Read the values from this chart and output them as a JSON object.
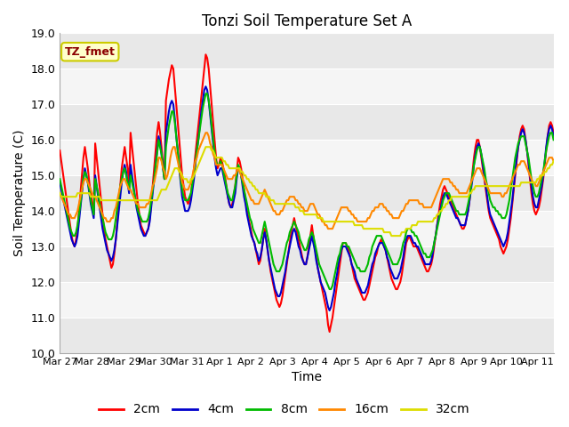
{
  "title": "Tonzi Soil Temperature Set A",
  "xlabel": "Time",
  "ylabel": "Soil Temperature (C)",
  "ylim": [
    10.0,
    19.0
  ],
  "yticks": [
    10.0,
    11.0,
    12.0,
    13.0,
    14.0,
    15.0,
    16.0,
    17.0,
    18.0,
    19.0
  ],
  "xtick_labels": [
    "Mar 27",
    "Mar 28",
    "Mar 29",
    "Mar 30",
    "Mar 31",
    "Apr 1",
    "Apr 2",
    "Apr 3",
    "Apr 4",
    "Apr 5",
    "Apr 6",
    "Apr 7",
    "Apr 8",
    "Apr 9",
    "Apr 10",
    "Apr 11"
  ],
  "background_color": "#ffffff",
  "plot_bg_light": "#f0f0f0",
  "plot_bg_dark": "#e0e0e0",
  "grid_color": "#ffffff",
  "legend_label": "TZ_fmet",
  "legend_box_color": "#ffffcc",
  "legend_text_color": "#8b0000",
  "legend_box_edge": "#cccc00",
  "series": {
    "2cm": {
      "color": "#ff0000",
      "lw": 1.5
    },
    "4cm": {
      "color": "#0000cc",
      "lw": 1.5
    },
    "8cm": {
      "color": "#00bb00",
      "lw": 1.5
    },
    "16cm": {
      "color": "#ff8800",
      "lw": 1.5
    },
    "32cm": {
      "color": "#dddd00",
      "lw": 1.5
    }
  },
  "data_2cm": [
    15.7,
    15.4,
    15.1,
    14.8,
    14.5,
    14.2,
    13.9,
    13.6,
    13.3,
    13.1,
    13.0,
    13.2,
    13.5,
    14.0,
    14.5,
    15.0,
    15.5,
    15.8,
    15.5,
    15.2,
    14.8,
    14.5,
    14.2,
    13.9,
    15.9,
    15.5,
    15.1,
    14.7,
    14.3,
    13.9,
    13.5,
    13.2,
    13.0,
    12.8,
    12.6,
    12.4,
    12.5,
    12.8,
    13.2,
    13.7,
    14.2,
    14.7,
    15.2,
    15.5,
    15.8,
    15.5,
    15.2,
    14.8,
    16.2,
    15.8,
    15.4,
    15.0,
    14.6,
    14.2,
    13.9,
    13.6,
    13.5,
    13.4,
    13.3,
    13.4,
    13.5,
    13.8,
    14.2,
    14.7,
    15.2,
    15.7,
    16.2,
    16.5,
    16.2,
    15.8,
    15.3,
    14.9,
    17.1,
    17.4,
    17.7,
    17.9,
    18.1,
    18.0,
    17.5,
    17.0,
    16.5,
    16.0,
    15.5,
    15.0,
    14.7,
    14.4,
    14.3,
    14.2,
    14.3,
    14.5,
    14.8,
    15.2,
    15.6,
    16.0,
    16.4,
    16.8,
    17.2,
    17.6,
    18.0,
    18.4,
    18.3,
    18.0,
    17.5,
    17.0,
    16.5,
    16.0,
    15.5,
    15.2,
    15.3,
    15.5,
    15.4,
    15.2,
    15.0,
    14.7,
    14.4,
    14.2,
    14.1,
    14.2,
    14.4,
    14.7,
    15.1,
    15.5,
    15.4,
    15.2,
    14.9,
    14.6,
    14.3,
    14.0,
    13.8,
    13.6,
    13.4,
    13.2,
    13.1,
    12.9,
    12.7,
    12.5,
    12.6,
    12.9,
    13.2,
    13.5,
    13.2,
    12.9,
    12.6,
    12.3,
    12.1,
    11.9,
    11.7,
    11.5,
    11.4,
    11.3,
    11.4,
    11.6,
    11.9,
    12.2,
    12.5,
    12.8,
    13.1,
    13.4,
    13.6,
    13.8,
    13.6,
    13.4,
    13.2,
    13.0,
    12.8,
    12.6,
    12.5,
    12.5,
    12.7,
    13.0,
    13.3,
    13.6,
    13.3,
    13.0,
    12.7,
    12.4,
    12.2,
    12.0,
    11.8,
    11.6,
    11.4,
    11.2,
    10.8,
    10.6,
    10.8,
    11.0,
    11.3,
    11.6,
    11.9,
    12.2,
    12.5,
    12.8,
    13.1,
    13.1,
    13.1,
    13.0,
    12.9,
    12.7,
    12.5,
    12.3,
    12.1,
    12.0,
    11.9,
    11.8,
    11.7,
    11.6,
    11.5,
    11.5,
    11.6,
    11.7,
    11.9,
    12.1,
    12.3,
    12.5,
    12.7,
    12.8,
    13.0,
    13.1,
    13.2,
    13.1,
    13.0,
    12.9,
    12.7,
    12.5,
    12.3,
    12.1,
    12.0,
    11.9,
    11.8,
    11.8,
    11.9,
    12.0,
    12.2,
    12.5,
    12.8,
    13.1,
    13.2,
    13.3,
    13.2,
    13.1,
    13.0,
    13.0,
    13.0,
    12.9,
    12.8,
    12.7,
    12.6,
    12.5,
    12.4,
    12.3,
    12.3,
    12.4,
    12.5,
    12.7,
    13.0,
    13.3,
    13.6,
    13.9,
    14.2,
    14.4,
    14.6,
    14.7,
    14.6,
    14.5,
    14.4,
    14.3,
    14.2,
    14.1,
    14.0,
    13.9,
    13.8,
    13.7,
    13.6,
    13.5,
    13.5,
    13.6,
    13.8,
    14.0,
    14.3,
    14.7,
    15.1,
    15.5,
    15.8,
    16.0,
    16.0,
    15.8,
    15.5,
    15.2,
    14.9,
    14.6,
    14.3,
    14.0,
    13.8,
    13.7,
    13.6,
    13.5,
    13.4,
    13.3,
    13.2,
    13.0,
    12.9,
    12.8,
    12.9,
    13.0,
    13.2,
    13.5,
    13.8,
    14.2,
    14.6,
    15.0,
    15.4,
    15.8,
    16.1,
    16.3,
    16.4,
    16.3,
    16.0,
    15.7,
    15.3,
    14.9,
    14.5,
    14.2,
    14.0,
    13.9,
    14.0,
    14.1,
    14.3,
    14.6,
    14.9,
    15.3,
    15.7,
    16.1,
    16.4,
    16.5,
    16.4,
    16.2
  ],
  "data_4cm": [
    14.8,
    14.6,
    14.4,
    14.2,
    14.0,
    13.8,
    13.6,
    13.4,
    13.2,
    13.1,
    13.0,
    13.1,
    13.3,
    13.7,
    14.1,
    14.5,
    14.9,
    15.2,
    15.0,
    14.8,
    14.5,
    14.2,
    14.0,
    13.8,
    15.0,
    14.7,
    14.4,
    14.1,
    13.8,
    13.5,
    13.3,
    13.1,
    12.9,
    12.8,
    12.7,
    12.6,
    12.7,
    12.9,
    13.2,
    13.6,
    14.0,
    14.4,
    14.8,
    15.1,
    15.3,
    15.1,
    14.8,
    14.5,
    15.3,
    15.0,
    14.7,
    14.4,
    14.1,
    13.9,
    13.7,
    13.5,
    13.4,
    13.3,
    13.3,
    13.4,
    13.5,
    13.7,
    14.1,
    14.5,
    14.9,
    15.3,
    15.7,
    16.1,
    15.9,
    15.6,
    15.2,
    14.9,
    16.2,
    16.5,
    16.8,
    17.0,
    17.1,
    17.0,
    16.6,
    16.1,
    15.7,
    15.2,
    14.8,
    14.4,
    14.2,
    14.0,
    14.0,
    14.0,
    14.1,
    14.3,
    14.6,
    14.9,
    15.3,
    15.7,
    16.0,
    16.4,
    16.8,
    17.1,
    17.4,
    17.5,
    17.4,
    17.1,
    16.7,
    16.3,
    15.9,
    15.5,
    15.2,
    15.0,
    15.1,
    15.2,
    15.2,
    15.0,
    14.8,
    14.6,
    14.4,
    14.2,
    14.1,
    14.1,
    14.3,
    14.5,
    14.9,
    15.2,
    15.2,
    15.0,
    14.7,
    14.4,
    14.2,
    13.9,
    13.7,
    13.5,
    13.3,
    13.2,
    13.1,
    12.9,
    12.8,
    12.6,
    12.7,
    12.9,
    13.2,
    13.4,
    13.2,
    12.9,
    12.6,
    12.4,
    12.2,
    12.0,
    11.8,
    11.7,
    11.6,
    11.6,
    11.7,
    11.9,
    12.1,
    12.3,
    12.6,
    12.8,
    13.0,
    13.2,
    13.4,
    13.5,
    13.4,
    13.2,
    13.0,
    12.9,
    12.7,
    12.6,
    12.5,
    12.5,
    12.7,
    12.9,
    13.1,
    13.3,
    13.1,
    12.9,
    12.6,
    12.4,
    12.2,
    12.0,
    11.9,
    11.8,
    11.7,
    11.5,
    11.3,
    11.2,
    11.3,
    11.5,
    11.7,
    12.0,
    12.2,
    12.5,
    12.7,
    12.9,
    13.0,
    13.0,
    13.0,
    12.9,
    12.8,
    12.7,
    12.5,
    12.4,
    12.3,
    12.1,
    12.0,
    11.9,
    11.8,
    11.7,
    11.7,
    11.7,
    11.8,
    11.9,
    12.1,
    12.3,
    12.5,
    12.6,
    12.8,
    12.9,
    13.0,
    13.1,
    13.1,
    13.1,
    13.0,
    12.9,
    12.7,
    12.6,
    12.4,
    12.3,
    12.2,
    12.1,
    12.1,
    12.1,
    12.2,
    12.3,
    12.5,
    12.7,
    13.0,
    13.2,
    13.3,
    13.3,
    13.3,
    13.2,
    13.1,
    13.1,
    13.0,
    13.0,
    12.9,
    12.8,
    12.7,
    12.6,
    12.5,
    12.5,
    12.5,
    12.5,
    12.6,
    12.8,
    13.1,
    13.3,
    13.6,
    13.8,
    14.0,
    14.2,
    14.4,
    14.5,
    14.5,
    14.4,
    14.3,
    14.2,
    14.1,
    14.0,
    13.9,
    13.8,
    13.8,
    13.7,
    13.6,
    13.6,
    13.6,
    13.6,
    13.8,
    14.0,
    14.3,
    14.6,
    14.9,
    15.3,
    15.6,
    15.8,
    15.9,
    15.8,
    15.6,
    15.3,
    15.0,
    14.7,
    14.4,
    14.1,
    13.9,
    13.8,
    13.7,
    13.6,
    13.5,
    13.4,
    13.3,
    13.2,
    13.1,
    13.0,
    13.1,
    13.2,
    13.4,
    13.7,
    14.0,
    14.3,
    14.7,
    15.1,
    15.5,
    15.8,
    16.0,
    16.2,
    16.3,
    16.2,
    16.0,
    15.7,
    15.4,
    15.0,
    14.7,
    14.4,
    14.2,
    14.1,
    14.1,
    14.3,
    14.5,
    14.7,
    15.0,
    15.4,
    15.8,
    16.1,
    16.3,
    16.4,
    16.3,
    16.1
  ],
  "data_8cm": [
    14.9,
    14.7,
    14.5,
    14.3,
    14.1,
    13.9,
    13.7,
    13.5,
    13.4,
    13.3,
    13.3,
    13.4,
    13.6,
    13.9,
    14.2,
    14.6,
    14.9,
    15.1,
    15.0,
    14.8,
    14.6,
    14.3,
    14.1,
    13.9,
    14.9,
    14.7,
    14.5,
    14.2,
    14.0,
    13.8,
    13.6,
    13.4,
    13.3,
    13.2,
    13.2,
    13.2,
    13.3,
    13.5,
    13.8,
    14.1,
    14.4,
    14.7,
    14.9,
    15.1,
    15.2,
    15.0,
    14.8,
    14.6,
    15.0,
    14.8,
    14.6,
    14.4,
    14.2,
    14.0,
    13.9,
    13.8,
    13.7,
    13.7,
    13.7,
    13.7,
    13.8,
    14.0,
    14.3,
    14.6,
    14.9,
    15.3,
    15.6,
    16.0,
    15.8,
    15.6,
    15.2,
    14.9,
    15.8,
    16.1,
    16.4,
    16.6,
    16.8,
    16.8,
    16.5,
    16.1,
    15.7,
    15.3,
    14.9,
    14.6,
    14.4,
    14.3,
    14.3,
    14.3,
    14.4,
    14.5,
    14.8,
    15.1,
    15.4,
    15.7,
    16.0,
    16.3,
    16.6,
    16.9,
    17.1,
    17.3,
    17.3,
    17.1,
    16.8,
    16.4,
    16.0,
    15.7,
    15.4,
    15.3,
    15.3,
    15.4,
    15.3,
    15.1,
    14.9,
    14.7,
    14.5,
    14.4,
    14.3,
    14.3,
    14.5,
    14.7,
    15.0,
    15.3,
    15.2,
    15.0,
    14.8,
    14.6,
    14.4,
    14.2,
    14.0,
    13.8,
    13.7,
    13.5,
    13.4,
    13.3,
    13.2,
    13.1,
    13.1,
    13.3,
    13.5,
    13.7,
    13.5,
    13.3,
    13.1,
    12.9,
    12.7,
    12.5,
    12.4,
    12.3,
    12.3,
    12.3,
    12.4,
    12.5,
    12.7,
    12.9,
    13.1,
    13.2,
    13.4,
    13.5,
    13.6,
    13.7,
    13.6,
    13.5,
    13.4,
    13.2,
    13.1,
    13.0,
    12.9,
    12.9,
    13.0,
    13.2,
    13.3,
    13.4,
    13.3,
    13.1,
    12.9,
    12.7,
    12.5,
    12.4,
    12.3,
    12.2,
    12.1,
    12.0,
    11.9,
    11.8,
    11.8,
    11.9,
    12.1,
    12.3,
    12.5,
    12.7,
    12.8,
    13.0,
    13.1,
    13.1,
    13.1,
    13.0,
    13.0,
    12.9,
    12.8,
    12.7,
    12.6,
    12.5,
    12.4,
    12.4,
    12.3,
    12.3,
    12.3,
    12.3,
    12.4,
    12.5,
    12.7,
    12.8,
    13.0,
    13.1,
    13.2,
    13.3,
    13.3,
    13.3,
    13.3,
    13.2,
    13.1,
    13.0,
    12.9,
    12.8,
    12.7,
    12.6,
    12.5,
    12.5,
    12.5,
    12.5,
    12.6,
    12.7,
    12.9,
    13.1,
    13.2,
    13.4,
    13.5,
    13.5,
    13.5,
    13.4,
    13.4,
    13.3,
    13.3,
    13.2,
    13.1,
    13.0,
    12.9,
    12.8,
    12.8,
    12.7,
    12.7,
    12.7,
    12.8,
    12.9,
    13.1,
    13.3,
    13.5,
    13.7,
    13.9,
    14.1,
    14.3,
    14.4,
    14.5,
    14.5,
    14.5,
    14.4,
    14.3,
    14.2,
    14.1,
    14.0,
    14.0,
    13.9,
    13.9,
    13.9,
    13.9,
    13.9,
    14.0,
    14.2,
    14.4,
    14.7,
    15.0,
    15.3,
    15.5,
    15.7,
    15.8,
    15.8,
    15.6,
    15.4,
    15.2,
    14.9,
    14.7,
    14.5,
    14.3,
    14.2,
    14.1,
    14.1,
    14.0,
    14.0,
    13.9,
    13.9,
    13.8,
    13.8,
    13.8,
    13.9,
    14.1,
    14.3,
    14.6,
    14.9,
    15.2,
    15.5,
    15.7,
    15.9,
    16.0,
    16.1,
    16.1,
    16.1,
    15.9,
    15.7,
    15.5,
    15.2,
    14.9,
    14.7,
    14.5,
    14.4,
    14.4,
    14.5,
    14.7,
    14.9,
    15.1,
    15.4,
    15.7,
    15.9,
    16.1,
    16.2,
    16.2,
    16.0
  ],
  "data_16cm": [
    14.5,
    14.4,
    14.3,
    14.2,
    14.1,
    14.0,
    13.9,
    13.9,
    13.8,
    13.8,
    13.8,
    13.9,
    14.0,
    14.2,
    14.4,
    14.6,
    14.8,
    14.9,
    14.9,
    14.8,
    14.7,
    14.6,
    14.5,
    14.4,
    14.4,
    14.3,
    14.2,
    14.1,
    14.0,
    13.9,
    13.8,
    13.8,
    13.7,
    13.7,
    13.7,
    13.8,
    13.8,
    14.0,
    14.1,
    14.3,
    14.5,
    14.7,
    14.8,
    14.9,
    14.9,
    14.8,
    14.7,
    14.6,
    14.6,
    14.5,
    14.4,
    14.3,
    14.2,
    14.2,
    14.1,
    14.1,
    14.1,
    14.1,
    14.1,
    14.2,
    14.2,
    14.3,
    14.5,
    14.7,
    14.8,
    15.0,
    15.2,
    15.5,
    15.5,
    15.4,
    15.2,
    15.1,
    14.9,
    15.0,
    15.2,
    15.5,
    15.7,
    15.8,
    15.8,
    15.6,
    15.4,
    15.2,
    15.0,
    14.8,
    14.7,
    14.6,
    14.6,
    14.6,
    14.7,
    14.8,
    15.0,
    15.2,
    15.4,
    15.5,
    15.7,
    15.8,
    15.9,
    16.0,
    16.1,
    16.2,
    16.2,
    16.1,
    15.9,
    15.8,
    15.6,
    15.5,
    15.3,
    15.3,
    15.3,
    15.3,
    15.3,
    15.2,
    15.1,
    15.0,
    14.9,
    14.9,
    14.9,
    14.9,
    15.0,
    15.0,
    15.1,
    15.2,
    15.1,
    15.0,
    14.9,
    14.8,
    14.7,
    14.6,
    14.5,
    14.4,
    14.3,
    14.3,
    14.2,
    14.2,
    14.2,
    14.2,
    14.3,
    14.4,
    14.5,
    14.6,
    14.5,
    14.4,
    14.3,
    14.2,
    14.1,
    14.0,
    14.0,
    13.9,
    13.9,
    13.9,
    14.0,
    14.0,
    14.1,
    14.2,
    14.3,
    14.3,
    14.4,
    14.4,
    14.4,
    14.4,
    14.3,
    14.3,
    14.2,
    14.2,
    14.1,
    14.1,
    14.0,
    14.0,
    14.0,
    14.1,
    14.2,
    14.2,
    14.2,
    14.1,
    14.0,
    13.9,
    13.9,
    13.8,
    13.7,
    13.7,
    13.6,
    13.6,
    13.5,
    13.5,
    13.5,
    13.5,
    13.6,
    13.7,
    13.8,
    13.9,
    14.0,
    14.1,
    14.1,
    14.1,
    14.1,
    14.1,
    14.0,
    14.0,
    13.9,
    13.9,
    13.8,
    13.8,
    13.7,
    13.7,
    13.7,
    13.7,
    13.7,
    13.7,
    13.7,
    13.8,
    13.8,
    13.9,
    14.0,
    14.0,
    14.1,
    14.1,
    14.1,
    14.2,
    14.2,
    14.2,
    14.1,
    14.1,
    14.0,
    14.0,
    13.9,
    13.9,
    13.8,
    13.8,
    13.8,
    13.8,
    13.8,
    13.9,
    14.0,
    14.0,
    14.1,
    14.2,
    14.2,
    14.3,
    14.3,
    14.3,
    14.3,
    14.3,
    14.3,
    14.3,
    14.2,
    14.2,
    14.2,
    14.1,
    14.1,
    14.1,
    14.1,
    14.1,
    14.1,
    14.2,
    14.3,
    14.4,
    14.5,
    14.6,
    14.7,
    14.8,
    14.9,
    14.9,
    14.9,
    14.9,
    14.9,
    14.8,
    14.8,
    14.7,
    14.7,
    14.6,
    14.6,
    14.5,
    14.5,
    14.5,
    14.5,
    14.5,
    14.5,
    14.6,
    14.7,
    14.8,
    14.9,
    15.0,
    15.1,
    15.2,
    15.2,
    15.2,
    15.1,
    15.0,
    14.9,
    14.8,
    14.7,
    14.6,
    14.5,
    14.5,
    14.5,
    14.5,
    14.5,
    14.5,
    14.5,
    14.5,
    14.4,
    14.4,
    14.5,
    14.5,
    14.6,
    14.7,
    14.8,
    14.9,
    15.0,
    15.1,
    15.2,
    15.3,
    15.3,
    15.4,
    15.4,
    15.4,
    15.3,
    15.2,
    15.1,
    15.0,
    14.9,
    14.8,
    14.8,
    14.7,
    14.7,
    14.8,
    14.9,
    15.0,
    15.1,
    15.2,
    15.3,
    15.4,
    15.5,
    15.5,
    15.5,
    15.4
  ],
  "data_32cm": [
    14.5,
    14.4,
    14.4,
    14.4,
    14.4,
    14.4,
    14.4,
    14.4,
    14.4,
    14.4,
    14.4,
    14.4,
    14.5,
    14.5,
    14.5,
    14.5,
    14.5,
    14.5,
    14.5,
    14.5,
    14.5,
    14.4,
    14.4,
    14.4,
    14.4,
    14.4,
    14.4,
    14.4,
    14.3,
    14.3,
    14.3,
    14.3,
    14.3,
    14.3,
    14.3,
    14.3,
    14.3,
    14.3,
    14.3,
    14.3,
    14.3,
    14.3,
    14.3,
    14.3,
    14.3,
    14.3,
    14.3,
    14.3,
    14.3,
    14.3,
    14.3,
    14.3,
    14.3,
    14.3,
    14.3,
    14.3,
    14.3,
    14.3,
    14.3,
    14.3,
    14.3,
    14.3,
    14.3,
    14.3,
    14.3,
    14.3,
    14.3,
    14.4,
    14.5,
    14.6,
    14.6,
    14.6,
    14.6,
    14.7,
    14.8,
    14.9,
    15.0,
    15.1,
    15.2,
    15.2,
    15.2,
    15.1,
    15.1,
    15.0,
    14.9,
    14.9,
    14.9,
    14.8,
    14.8,
    14.9,
    14.9,
    15.0,
    15.1,
    15.2,
    15.3,
    15.4,
    15.5,
    15.6,
    15.7,
    15.8,
    15.8,
    15.8,
    15.8,
    15.7,
    15.7,
    15.6,
    15.5,
    15.5,
    15.5,
    15.5,
    15.5,
    15.4,
    15.4,
    15.3,
    15.3,
    15.2,
    15.2,
    15.2,
    15.2,
    15.2,
    15.2,
    15.2,
    15.2,
    15.1,
    15.1,
    15.0,
    15.0,
    14.9,
    14.9,
    14.8,
    14.8,
    14.7,
    14.7,
    14.6,
    14.6,
    14.5,
    14.5,
    14.5,
    14.5,
    14.5,
    14.4,
    14.4,
    14.4,
    14.3,
    14.3,
    14.3,
    14.2,
    14.2,
    14.2,
    14.2,
    14.2,
    14.2,
    14.2,
    14.2,
    14.2,
    14.2,
    14.2,
    14.2,
    14.2,
    14.2,
    14.1,
    14.1,
    14.1,
    14.0,
    14.0,
    14.0,
    13.9,
    13.9,
    13.9,
    13.9,
    13.9,
    13.9,
    13.9,
    13.9,
    13.9,
    13.8,
    13.8,
    13.8,
    13.8,
    13.7,
    13.7,
    13.7,
    13.7,
    13.7,
    13.7,
    13.7,
    13.7,
    13.7,
    13.7,
    13.7,
    13.7,
    13.7,
    13.7,
    13.7,
    13.7,
    13.7,
    13.7,
    13.7,
    13.7,
    13.7,
    13.6,
    13.6,
    13.6,
    13.6,
    13.6,
    13.6,
    13.5,
    13.5,
    13.5,
    13.5,
    13.5,
    13.5,
    13.5,
    13.5,
    13.5,
    13.5,
    13.5,
    13.5,
    13.5,
    13.5,
    13.4,
    13.4,
    13.4,
    13.4,
    13.4,
    13.3,
    13.3,
    13.3,
    13.3,
    13.3,
    13.3,
    13.3,
    13.4,
    13.4,
    13.4,
    13.5,
    13.5,
    13.5,
    13.5,
    13.6,
    13.6,
    13.6,
    13.6,
    13.7,
    13.7,
    13.7,
    13.7,
    13.7,
    13.7,
    13.7,
    13.7,
    13.7,
    13.7,
    13.7,
    13.8,
    13.8,
    13.9,
    13.9,
    14.0,
    14.0,
    14.1,
    14.1,
    14.2,
    14.2,
    14.3,
    14.3,
    14.4,
    14.4,
    14.4,
    14.4,
    14.4,
    14.4,
    14.4,
    14.4,
    14.4,
    14.4,
    14.4,
    14.4,
    14.5,
    14.5,
    14.6,
    14.6,
    14.7,
    14.7,
    14.7,
    14.7,
    14.7,
    14.7,
    14.7,
    14.7,
    14.7,
    14.7,
    14.7,
    14.7,
    14.7,
    14.7,
    14.7,
    14.7,
    14.7,
    14.7,
    14.7,
    14.7,
    14.7,
    14.7,
    14.7,
    14.7,
    14.7,
    14.7,
    14.7,
    14.7,
    14.7,
    14.7,
    14.7,
    14.8,
    14.8,
    14.8,
    14.8,
    14.8,
    14.8,
    14.8,
    14.8,
    14.8,
    14.8,
    14.8,
    14.9,
    14.9,
    15.0,
    15.0,
    15.0,
    15.1,
    15.1,
    15.2,
    15.2,
    15.3,
    15.3,
    15.4
  ]
}
